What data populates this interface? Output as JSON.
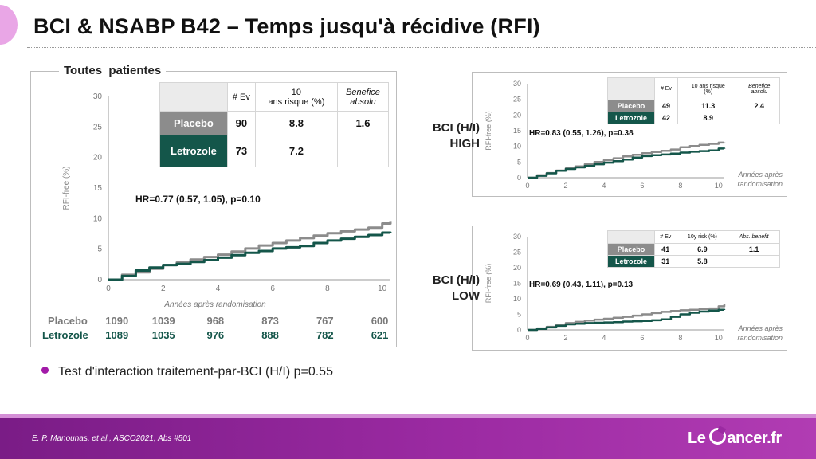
{
  "slide": {
    "title": "BCI & NSABP B42 – Temps jusqu'à récidive (RFI)",
    "citation": "E. P. Manounas, et al., ASCO2021, Abs #501",
    "logo": {
      "left": "Le",
      "right": "ancer.fr"
    },
    "bullet": "Test d'interaction traitement-par-BCI (H/I) p=0.55"
  },
  "colors": {
    "placebo": "#8c8c8c",
    "letrozole": "#14564a",
    "accent": "#a21aa8",
    "footer": "#9b2aa2"
  },
  "main_panel": {
    "label": "Toutes  patientes",
    "hr_text": "HR=0.77 (0.57, 1.05), p=0.10",
    "table": {
      "headers": [
        "# Ev",
        "10\nans risque (%)",
        "Benefice\nabsolu"
      ],
      "rows": [
        {
          "label": "Placebo",
          "ev": "90",
          "risk": "8.8",
          "benefit": "1.6"
        },
        {
          "label": "Letrozole",
          "ev": "73",
          "risk": "7.2",
          "benefit": ""
        }
      ]
    },
    "number_at_risk": {
      "rows": [
        {
          "label": "Placebo",
          "values": [
            "1090",
            "1039",
            "968",
            "873",
            "767",
            "600"
          ]
        },
        {
          "label": "Letrozole",
          "values": [
            "1089",
            "1035",
            "976",
            "888",
            "782",
            "621"
          ]
        }
      ]
    }
  },
  "high_panel": {
    "side_label_line1": "BCI (H/I)",
    "side_label_line2": "HIGH",
    "hr_text": "HR=0.83 (0.55, 1.26), p=0.38",
    "table": {
      "headers": [
        "# Ev",
        "10 ans risque\n(%)",
        "Benefice\nabsolu"
      ],
      "rows": [
        {
          "label": "Placebo",
          "ev": "49",
          "risk": "11.3",
          "benefit": "2.4"
        },
        {
          "label": "Letrozole",
          "ev": "42",
          "risk": "8.9",
          "benefit": ""
        }
      ]
    }
  },
  "low_panel": {
    "side_label_line1": "BCI (H/I)",
    "side_label_line2": "LOW",
    "hr_text": "HR=0.69 (0.43, 1.11), p=0.13",
    "table": {
      "headers": [
        "# Ev",
        "10y risk (%)",
        "Abs. benefit"
      ],
      "rows": [
        {
          "label": "Placebo",
          "ev": "41",
          "risk": "6.9",
          "benefit": "1.1"
        },
        {
          "label": "Letrozole",
          "ev": "31",
          "risk": "5.8",
          "benefit": ""
        }
      ]
    }
  },
  "chart_data": [
    {
      "type": "line",
      "xlabel": "Années après randomisation",
      "ylabel": "RFI-free (%)",
      "xlim": [
        0,
        10.3
      ],
      "ylim": [
        0,
        30
      ],
      "x_ticks": [
        0,
        2,
        4,
        6,
        8,
        10
      ],
      "y_ticks": [
        0,
        5,
        10,
        15,
        20,
        25,
        30
      ],
      "series": [
        {
          "name": "Placebo",
          "x": [
            0,
            0.5,
            1,
            1.5,
            2,
            2.5,
            3,
            3.5,
            4,
            4.5,
            5,
            5.5,
            6,
            6.5,
            7,
            7.5,
            8,
            8.5,
            9,
            9.5,
            10,
            10.3
          ],
          "y": [
            0,
            0.8,
            1.2,
            1.8,
            2.4,
            2.8,
            3.3,
            3.7,
            4.1,
            4.6,
            5.1,
            5.6,
            6.0,
            6.4,
            6.8,
            7.2,
            7.6,
            7.9,
            8.2,
            8.5,
            9.2,
            9.6
          ]
        },
        {
          "name": "Letrozole",
          "x": [
            0,
            0.5,
            1,
            1.5,
            2,
            2.5,
            3,
            3.5,
            4,
            4.5,
            5,
            5.5,
            6,
            6.5,
            7,
            7.5,
            8,
            8.5,
            9,
            9.5,
            10,
            10.3
          ],
          "y": [
            0,
            0.6,
            1.5,
            2.0,
            2.4,
            2.6,
            2.9,
            3.2,
            3.6,
            4.0,
            4.4,
            4.7,
            5.1,
            5.3,
            5.5,
            6.0,
            6.4,
            6.7,
            7.0,
            7.3,
            7.7,
            7.6
          ]
        }
      ]
    },
    {
      "type": "line",
      "xlabel": "Années après\nrandomisation",
      "ylabel": "RFI-free (%)",
      "xlim": [
        0,
        10.3
      ],
      "ylim": [
        0,
        30
      ],
      "x_ticks": [
        0,
        2,
        4,
        6,
        8,
        10
      ],
      "y_ticks": [
        0,
        5,
        10,
        15,
        20,
        25,
        30
      ],
      "series": [
        {
          "name": "Placebo",
          "x": [
            0,
            0.5,
            1,
            1.5,
            2,
            2.5,
            3,
            3.5,
            4,
            4.5,
            5,
            5.5,
            6,
            6.5,
            7,
            7.5,
            8,
            8.5,
            9,
            9.5,
            10,
            10.3
          ],
          "y": [
            0,
            0.8,
            1.5,
            2.3,
            3.0,
            3.6,
            4.3,
            5.0,
            5.6,
            6.2,
            6.8,
            7.3,
            7.8,
            8.2,
            8.6,
            9.0,
            9.7,
            10.1,
            10.5,
            10.8,
            11.2,
            11.3
          ]
        },
        {
          "name": "Letrozole",
          "x": [
            0,
            0.5,
            1,
            1.5,
            2,
            2.5,
            3,
            3.5,
            4,
            4.5,
            5,
            5.5,
            6,
            6.5,
            7,
            7.5,
            8,
            8.5,
            9,
            9.5,
            10,
            10.3
          ],
          "y": [
            0,
            0.6,
            1.4,
            2.2,
            2.8,
            3.3,
            3.8,
            4.3,
            4.8,
            5.3,
            5.8,
            6.4,
            6.9,
            7.2,
            7.4,
            7.7,
            8.0,
            8.3,
            8.5,
            8.7,
            9.3,
            9.2
          ]
        }
      ]
    },
    {
      "type": "line",
      "xlabel": "Années après\nrandomisation",
      "ylabel": "RFI-free (%)",
      "xlim": [
        0,
        10.3
      ],
      "ylim": [
        0,
        30
      ],
      "x_ticks": [
        0,
        2,
        4,
        6,
        8,
        10
      ],
      "y_ticks": [
        0,
        5,
        10,
        15,
        20,
        25,
        30
      ],
      "series": [
        {
          "name": "Placebo",
          "x": [
            0,
            0.5,
            1,
            1.5,
            2,
            2.5,
            3,
            3.5,
            4,
            4.5,
            5,
            5.5,
            6,
            6.5,
            7,
            7.5,
            8,
            8.5,
            9,
            9.5,
            10,
            10.3
          ],
          "y": [
            0,
            0.5,
            1.0,
            1.6,
            2.2,
            2.6,
            3.0,
            3.3,
            3.6,
            3.9,
            4.2,
            4.6,
            5.0,
            5.4,
            5.8,
            6.1,
            6.3,
            6.5,
            6.7,
            6.9,
            7.6,
            8.2
          ]
        },
        {
          "name": "Letrozole",
          "x": [
            0,
            0.5,
            1,
            1.5,
            2,
            2.5,
            3,
            3.5,
            4,
            4.5,
            5,
            5.5,
            6,
            6.5,
            7,
            7.5,
            8,
            8.5,
            9,
            9.5,
            10,
            10.3
          ],
          "y": [
            0,
            0.3,
            0.8,
            1.3,
            1.8,
            2.0,
            2.2,
            2.3,
            2.4,
            2.5,
            2.7,
            2.8,
            2.9,
            3.1,
            3.4,
            4.2,
            5.0,
            5.5,
            5.9,
            6.2,
            6.5,
            6.4
          ]
        }
      ]
    }
  ]
}
